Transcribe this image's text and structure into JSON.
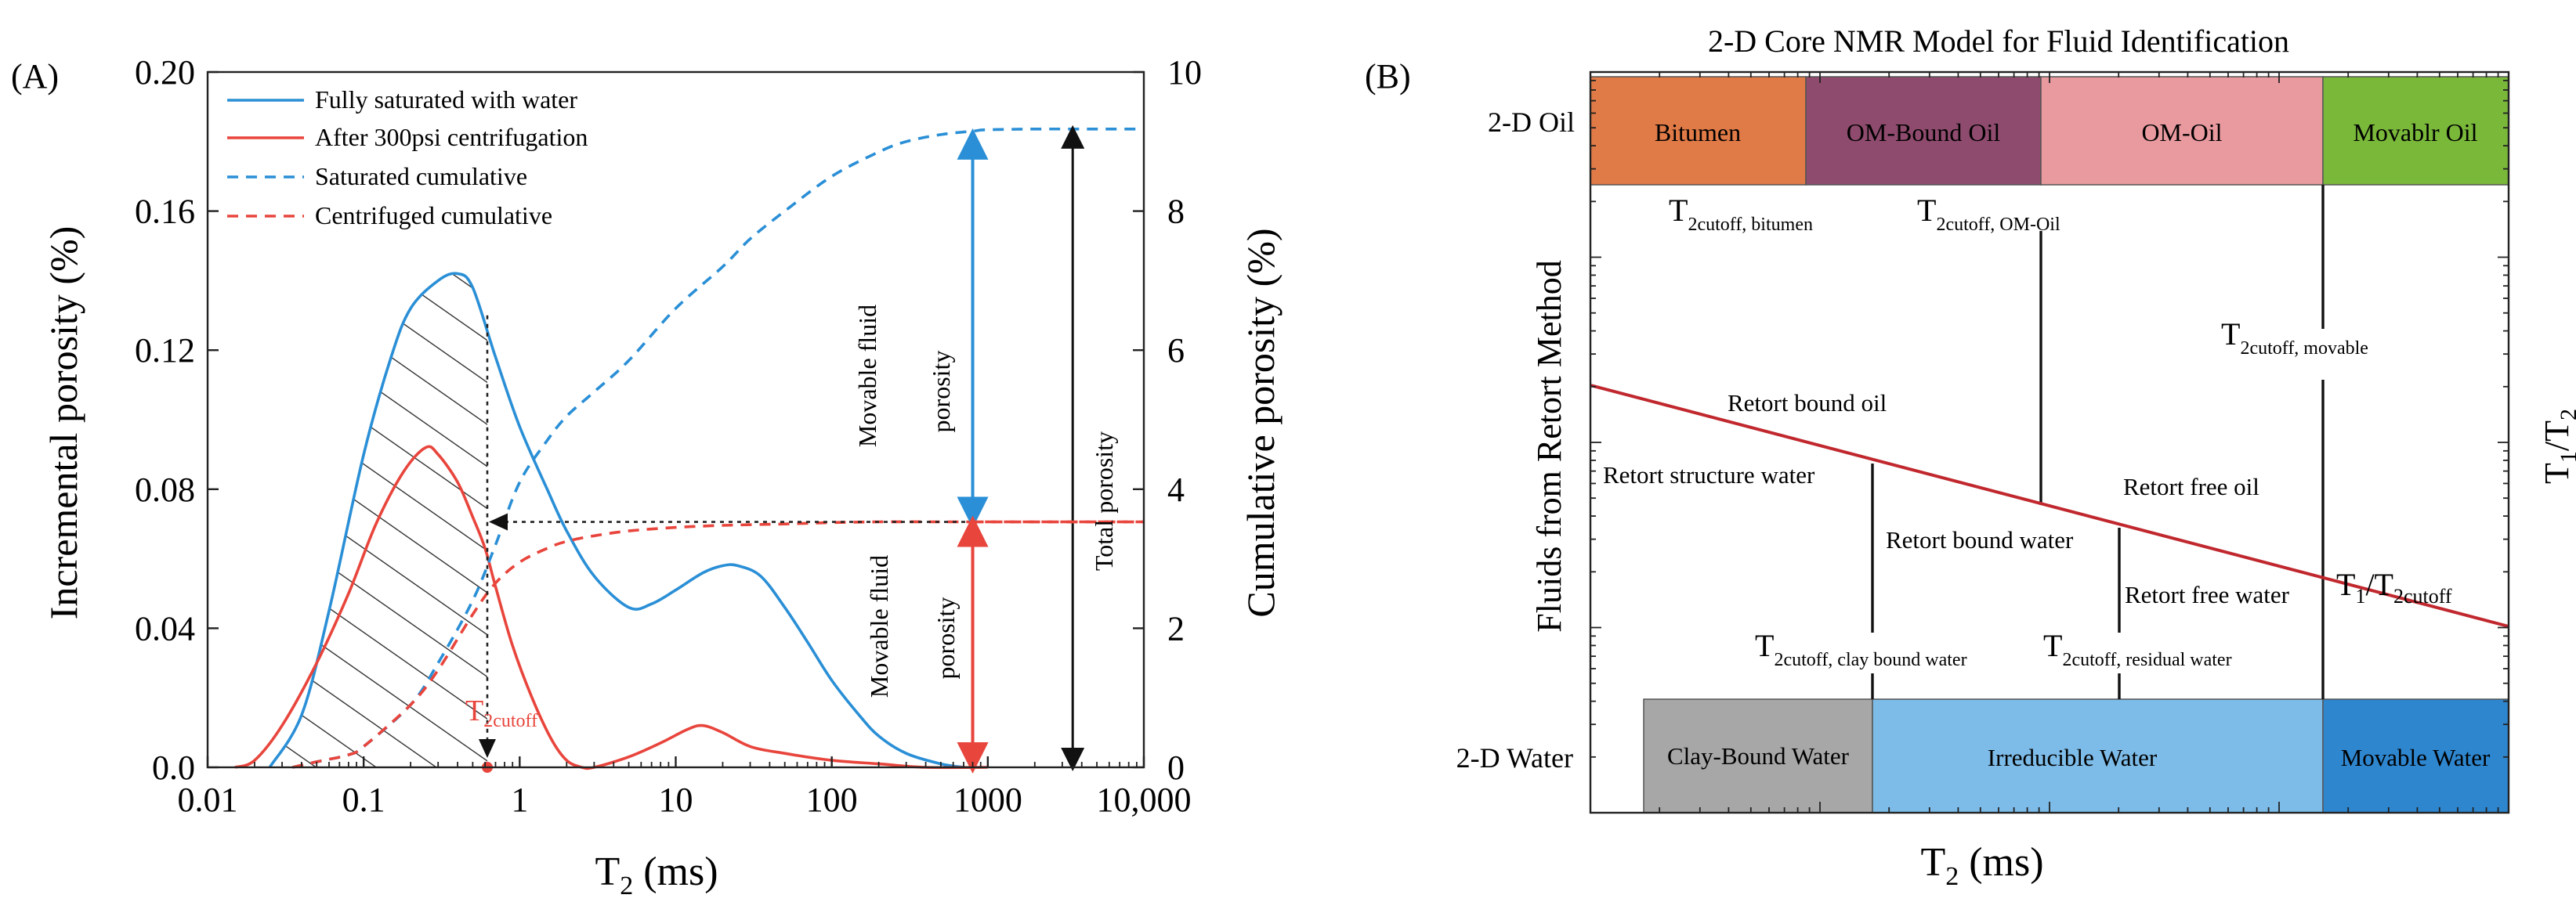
{
  "chart_data": [
    {
      "panel_label": "(A)",
      "type": "line",
      "xscale": "log",
      "xlim": [
        0.01,
        10000
      ],
      "xticks": [
        0.01,
        0.1,
        1,
        10,
        100,
        1000,
        10000
      ],
      "xtick_labels": [
        "0.01",
        "0.1",
        "1",
        "10",
        "100",
        "1000",
        "10,000"
      ],
      "xlabel_main": "T",
      "xlabel_sub": "2",
      "xlabel_tail": " (ms)",
      "ylabel_left": "Incremental porosity (%)",
      "ylim_left": [
        0,
        0.2
      ],
      "yticks_left": [
        0.0,
        0.04,
        0.08,
        0.12,
        0.16,
        0.2
      ],
      "ytick_labels_left": [
        "0.0",
        "0.04",
        "0.08",
        "0.12",
        "0.16",
        "0.20"
      ],
      "ylabel_right": "Cumulative porosity (%)",
      "ylim_right": [
        0,
        10
      ],
      "yticks_right": [
        0,
        2,
        4,
        6,
        8,
        10
      ],
      "ytick_labels_right": [
        "0",
        "2",
        "4",
        "6",
        "8",
        "10"
      ],
      "series": [
        {
          "name": "Fully saturated with water",
          "style": "solid",
          "color": "#2a8fd6",
          "axis": "left",
          "x": [
            0.025,
            0.04,
            0.06,
            0.1,
            0.15,
            0.2,
            0.3,
            0.4,
            0.5,
            0.7,
            1,
            1.5,
            2,
            3,
            5,
            7,
            10,
            15,
            20,
            25,
            35,
            50,
            70,
            100,
            150,
            200,
            300,
            500,
            700
          ],
          "y": [
            0.0,
            0.015,
            0.045,
            0.09,
            0.118,
            0.132,
            0.14,
            0.142,
            0.138,
            0.118,
            0.098,
            0.08,
            0.068,
            0.055,
            0.046,
            0.047,
            0.051,
            0.056,
            0.058,
            0.058,
            0.055,
            0.046,
            0.036,
            0.025,
            0.015,
            0.009,
            0.004,
            0.001,
            0.0
          ]
        },
        {
          "name": "After 300psi centrifugation",
          "style": "solid",
          "color": "#e8453c",
          "axis": "left",
          "x": [
            0.015,
            0.02,
            0.03,
            0.05,
            0.08,
            0.12,
            0.18,
            0.25,
            0.3,
            0.4,
            0.5,
            0.6,
            0.7,
            0.9,
            1.2,
            1.6,
            2,
            2.5,
            3,
            5,
            8,
            12,
            15,
            20,
            30,
            50,
            100,
            200,
            400,
            1000
          ],
          "y": [
            0.0,
            0.002,
            0.012,
            0.03,
            0.05,
            0.07,
            0.085,
            0.092,
            0.09,
            0.082,
            0.072,
            0.063,
            0.052,
            0.035,
            0.02,
            0.008,
            0.002,
            0.0,
            0.0,
            0.003,
            0.007,
            0.011,
            0.012,
            0.01,
            0.006,
            0.004,
            0.002,
            0.001,
            0.0,
            0.0
          ]
        },
        {
          "name": "Saturated cumulative",
          "style": "dashed",
          "color": "#2a8fd6",
          "axis": "right",
          "x": [
            0.035,
            0.05,
            0.08,
            0.1,
            0.2,
            0.3,
            0.5,
            0.7,
            1,
            1.5,
            2,
            3,
            5,
            10,
            20,
            30,
            50,
            100,
            200,
            300,
            500,
            800,
            1000,
            2000,
            5000,
            10000
          ],
          "y": [
            0.0,
            0.08,
            0.18,
            0.3,
            0.9,
            1.5,
            2.4,
            3.2,
            4.1,
            4.7,
            5.05,
            5.4,
            5.85,
            6.6,
            7.2,
            7.6,
            8.0,
            8.5,
            8.85,
            9.0,
            9.1,
            9.15,
            9.17,
            9.18,
            9.18,
            9.18
          ]
        },
        {
          "name": "Centrifuged cumulative",
          "style": "dashed",
          "color": "#e8453c",
          "axis": "right",
          "x": [
            0.035,
            0.05,
            0.08,
            0.1,
            0.2,
            0.3,
            0.5,
            0.7,
            1,
            1.5,
            2,
            3,
            5,
            10,
            20,
            50,
            100,
            200,
            500,
            1000,
            10000
          ],
          "y": [
            0.0,
            0.08,
            0.18,
            0.3,
            0.9,
            1.4,
            2.2,
            2.65,
            2.95,
            3.15,
            3.25,
            3.33,
            3.4,
            3.45,
            3.48,
            3.5,
            3.52,
            3.53,
            3.53,
            3.53,
            3.53
          ]
        }
      ],
      "t2cutoff_ms": 0.62,
      "t2cutoff_label_main": "T",
      "t2cutoff_label_sub": "2cutoff",
      "annotations": {
        "movable_fluid": "Movable fluid",
        "porosity": "porosity",
        "total_porosity": "Total  porosity"
      },
      "movable_porosity_top": 9.1,
      "movable_porosity_mid": 3.53,
      "total_porosity_value": 9.18,
      "arrow_x_ms": 800,
      "total_arrow_x_ms": 3500,
      "legend_position": "top-left"
    },
    {
      "panel_label": "(B)",
      "type": "diagram",
      "title": "2-D Core NMR Model for Fluid Identification",
      "xlabel_main": "T",
      "xlabel_sub": "2",
      "xlabel_tail": " (ms)",
      "ylabel_left": "Fluids from Retort Method",
      "ylabel_right_main": "T",
      "ylabel_right_sub1": "1",
      "ylabel_right_mid": "/T",
      "ylabel_right_sub2": "2",
      "row_label_oil": "2-D Oil",
      "row_label_water": "2-D Water",
      "oil_boxes": [
        {
          "label": "Bitumen",
          "color": "#e07a47"
        },
        {
          "label": "OM-Bound Oil",
          "color": "#8e4b6e"
        },
        {
          "label": "OM-Oil",
          "color": "#e89a9f"
        },
        {
          "label": "Movablr Oil",
          "color": "#7ab83a"
        }
      ],
      "water_boxes": [
        {
          "label": "Clay-Bound Water",
          "color": "#a7a7a7"
        },
        {
          "label": "Irreducible Water",
          "color": "#7dbce8"
        },
        {
          "label": "Movable Water",
          "color": "#2e86cf"
        }
      ],
      "cutoff_labels": [
        {
          "main": "T",
          "sub": "2cutoff, bitumen"
        },
        {
          "main": "T",
          "sub": "2cutoff, OM-Oil"
        },
        {
          "main": "T",
          "sub": "2cutoff, movable"
        },
        {
          "main": "T",
          "sub": "2cutoff, clay bound water"
        },
        {
          "main": "T",
          "sub": "2cutoff, residual water"
        }
      ],
      "region_labels": {
        "retort_bound_oil": "Retort bound oil",
        "retort_structure_water": "Retort structure water",
        "retort_free_oil": "Retort free oil",
        "retort_bound_water": "Retort bound water",
        "retort_free_water": "Retort free water"
      },
      "ratio_label": {
        "main": "T",
        "sub1": "1",
        "mid": "/T",
        "sub2": "2cutoff"
      },
      "colors": {
        "diagonal_line": "#c0282e"
      }
    }
  ]
}
